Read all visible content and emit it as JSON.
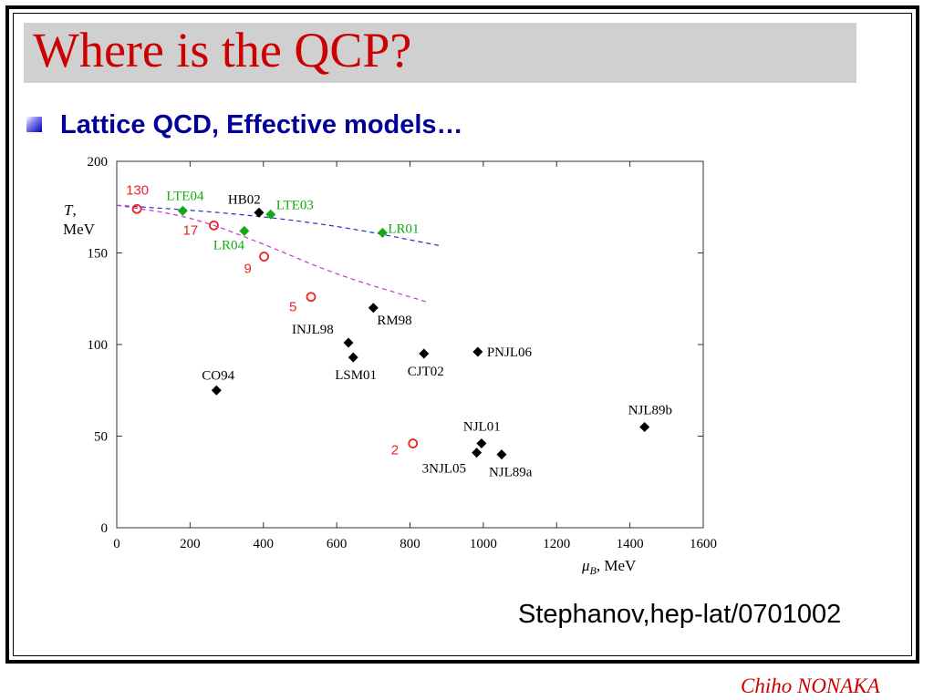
{
  "slide": {
    "title": "Where is the QCP?",
    "bullet": "Lattice QCD, Effective models…",
    "citation": "Stephanov,hep-lat/0701002",
    "author": "Chiho NONAKA",
    "colors": {
      "title": "#cc0000",
      "bullet_text": "#000099",
      "title_bar": "#d0d0d0",
      "author": "#cc0000"
    }
  },
  "chart_data": {
    "type": "scatter",
    "title": "",
    "xlabel": "μB, MeV",
    "ylabel": "T, MeV",
    "xlim": [
      0,
      1600
    ],
    "ylim": [
      0,
      200
    ],
    "xticks": [
      0,
      200,
      400,
      600,
      800,
      1000,
      1200,
      1400,
      1600
    ],
    "yticks": [
      0,
      50,
      100,
      150,
      200
    ],
    "grid": false,
    "series": [
      {
        "marker": "diamond",
        "color": "#000000",
        "points": [
          {
            "label": "HB02",
            "x": 388,
            "y": 172
          },
          {
            "label": "RM98",
            "x": 700,
            "y": 120
          },
          {
            "label": "INJL98",
            "x": 632,
            "y": 101
          },
          {
            "label": "LSM01",
            "x": 645,
            "y": 93
          },
          {
            "label": "CJT02",
            "x": 838,
            "y": 95
          },
          {
            "label": "PNJL06",
            "x": 985,
            "y": 96
          },
          {
            "label": "CO94",
            "x": 272,
            "y": 75
          },
          {
            "label": "NJL89b",
            "x": 1440,
            "y": 55
          },
          {
            "label": "NJL01",
            "x": 995,
            "y": 46
          },
          {
            "label": "3NJL05",
            "x": 982,
            "y": 41
          },
          {
            "label": "NJL89a",
            "x": 1050,
            "y": 40
          }
        ]
      },
      {
        "marker": "diamond",
        "color": "#11aa11",
        "points": [
          {
            "label": "LTE04",
            "x": 180,
            "y": 173
          },
          {
            "label": "LTE03",
            "x": 420,
            "y": 171
          },
          {
            "label": "LR01",
            "x": 725,
            "y": 161
          },
          {
            "label": "LR04",
            "x": 348,
            "y": 162
          }
        ]
      },
      {
        "marker": "open-circle",
        "color": "#ee2222",
        "points": [
          {
            "label": "130",
            "x": 55,
            "y": 174
          },
          {
            "label": "17",
            "x": 265,
            "y": 165
          },
          {
            "label": "9",
            "x": 402,
            "y": 148
          },
          {
            "label": "5",
            "x": 530,
            "y": 126
          },
          {
            "label": "2",
            "x": 808,
            "y": 46
          }
        ]
      }
    ],
    "curves": [
      {
        "style": "dashed",
        "color": "#2233cc",
        "x": [
          0,
          300,
          600,
          880
        ],
        "y": [
          176,
          172,
          165,
          154
        ]
      },
      {
        "style": "dashed",
        "color": "#cc33cc",
        "x": [
          0,
          200,
          400,
          600,
          850
        ],
        "y": [
          176,
          170,
          155,
          138,
          123
        ]
      }
    ]
  }
}
